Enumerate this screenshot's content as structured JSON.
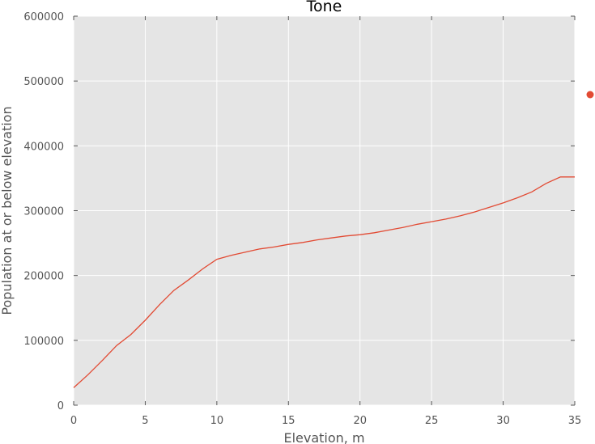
{
  "chart_data": {
    "type": "line",
    "title": "Tone",
    "xlabel": "Elevation, m",
    "ylabel": "Population at or below elevation",
    "xlim": [
      0,
      35
    ],
    "ylim": [
      0,
      600000
    ],
    "x_ticks": [
      0,
      5,
      10,
      15,
      20,
      25,
      30,
      35
    ],
    "x_tick_labels": [
      "0",
      "5",
      "10",
      "15",
      "20",
      "25",
      "30",
      "35"
    ],
    "y_ticks": [
      0,
      100000,
      200000,
      300000,
      400000,
      500000,
      600000
    ],
    "y_tick_labels": [
      "0",
      "100000",
      "200000",
      "300000",
      "400000",
      "500000",
      "600000"
    ],
    "grid": true,
    "background": "#e5e5e5",
    "series": [
      {
        "color": "#e24a33",
        "x": [
          0,
          1,
          2,
          3,
          4,
          5,
          6,
          7,
          8,
          9,
          10,
          11,
          12,
          13,
          14,
          15,
          16,
          17,
          18,
          19,
          20,
          21,
          22,
          23,
          24,
          25,
          26,
          27,
          28,
          29,
          30,
          31,
          32,
          33,
          34,
          35
        ],
        "y": [
          27000,
          47000,
          69000,
          92000,
          109000,
          131000,
          155000,
          177000,
          193000,
          210000,
          225000,
          231000,
          236000,
          241000,
          244000,
          248000,
          251000,
          255000,
          258000,
          261000,
          263000,
          266000,
          270000,
          274000,
          279000,
          283000,
          287000,
          292000,
          298000,
          305000,
          312000,
          320000,
          329000,
          342000,
          352000,
          352000
        ]
      }
    ],
    "legend": {
      "placement": "right, outside plot",
      "marker_color": "#e24a33"
    }
  }
}
